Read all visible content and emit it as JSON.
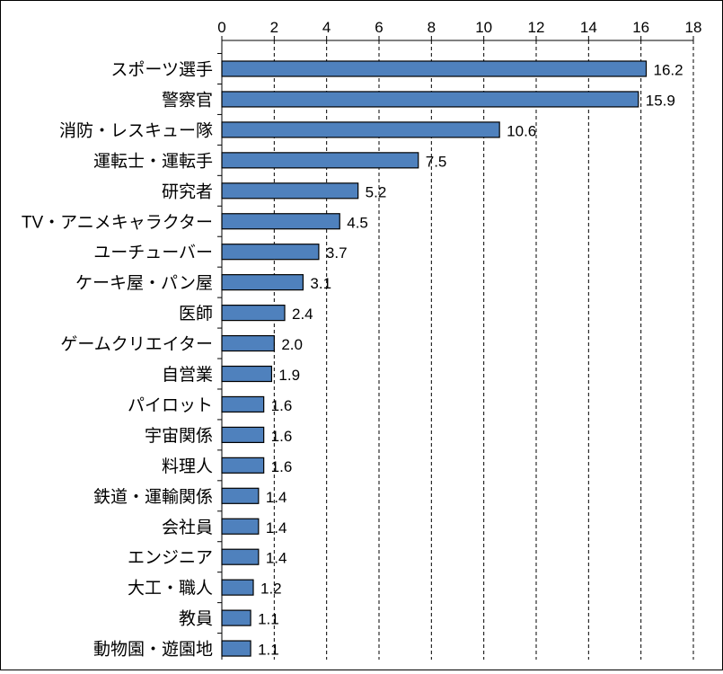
{
  "chart_data": {
    "type": "bar",
    "orientation": "horizontal",
    "categories": [
      "スポーツ選手",
      "警察官",
      "消防・レスキュー隊",
      "運転士・運転手",
      "研究者",
      "TV・アニメキャラクター",
      "ユーチューバー",
      "ケーキ屋・パン屋",
      "医師",
      "ゲームクリエイター",
      "自営業",
      "パイロット",
      "宇宙関係",
      "料理人",
      "鉄道・運輸関係",
      "会社員",
      "エンジニア",
      "大工・職人",
      "教員",
      "動物園・遊園地"
    ],
    "values": [
      16.2,
      15.9,
      10.6,
      7.5,
      5.2,
      4.5,
      3.7,
      3.1,
      2.4,
      2.0,
      1.9,
      1.6,
      1.6,
      1.6,
      1.4,
      1.4,
      1.4,
      1.2,
      1.1,
      1.1
    ],
    "value_labels": [
      "16.2",
      "15.9",
      "10.6",
      "7.5",
      "5.2",
      "4.5",
      "3.7",
      "3.1",
      "2.4",
      "2.0",
      "1.9",
      "1.6",
      "1.6",
      "1.6",
      "1.4",
      "1.4",
      "1.4",
      "1.2",
      "1.1",
      "1.1"
    ],
    "xlim": [
      0,
      18
    ],
    "xticks": [
      0,
      2,
      4,
      6,
      8,
      10,
      12,
      14,
      16,
      18
    ],
    "xtick_labels": [
      "0",
      "2",
      "4",
      "6",
      "8",
      "10",
      "12",
      "14",
      "16",
      "18"
    ],
    "x_axis_position": "top",
    "grid": "vertical dashed",
    "title": "",
    "xlabel": "",
    "ylabel": "",
    "colors": {
      "bar_fill": "#4f81bd",
      "bar_stroke": "#000000",
      "grid": "#000000",
      "text": "#000000"
    }
  }
}
